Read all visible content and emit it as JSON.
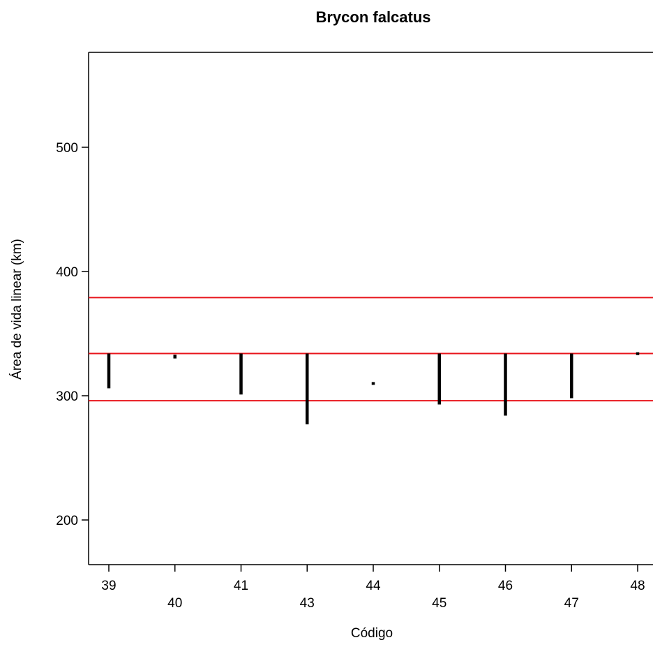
{
  "chart_data": {
    "type": "interval",
    "title": "Brycon falcatus",
    "xlabel": "Código",
    "ylabel": "Área de vida linear (km)",
    "categories": [
      "39",
      "40",
      "41",
      "43",
      "44",
      "45",
      "46",
      "47",
      "48"
    ],
    "ranges": [
      {
        "category": "39",
        "low": 306,
        "high": 334
      },
      {
        "category": "40",
        "low": 330,
        "high": 333
      },
      {
        "category": "41",
        "low": 301,
        "high": 334
      },
      {
        "category": "43",
        "low": 277,
        "high": 334
      },
      {
        "category": "44",
        "low": 309,
        "high": 311
      },
      {
        "category": "45",
        "low": 293,
        "high": 334
      },
      {
        "category": "46",
        "low": 284,
        "high": 334
      },
      {
        "category": "47",
        "low": 298,
        "high": 334
      },
      {
        "category": "48",
        "low": 334,
        "high": 335
      }
    ],
    "reference_lines": [
      {
        "y": 379,
        "color": "#e8141b"
      },
      {
        "y": 334,
        "color": "#e8141b"
      },
      {
        "y": 296,
        "color": "#e8141b"
      }
    ],
    "ylim": [
      165,
      575
    ],
    "yticks": [
      200,
      300,
      400,
      500
    ],
    "grid": false,
    "legend": "none",
    "colors": {
      "range": "#000000",
      "reference": "#e8141b"
    }
  }
}
